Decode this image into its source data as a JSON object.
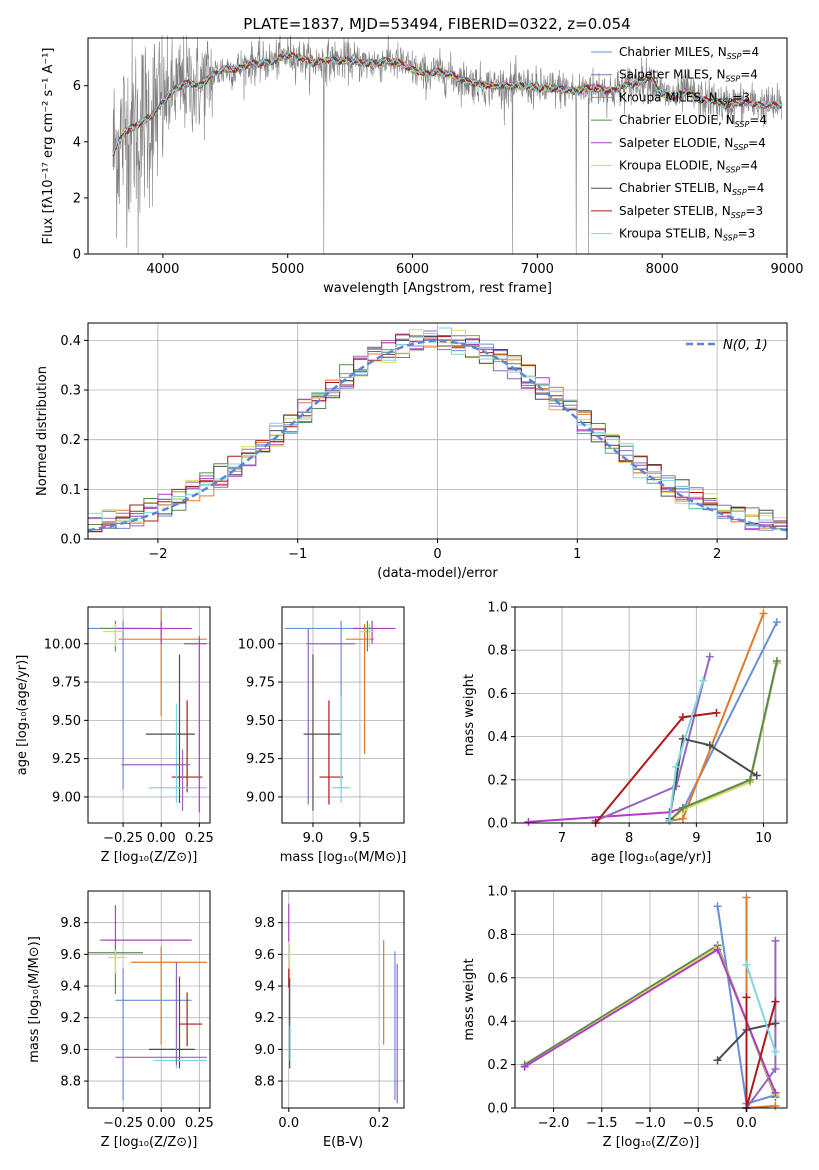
{
  "title": "PLATE=1837, MJD=53494, FIBERID=0322, z=0.054",
  "colors": {
    "Chabrier MILES": "#6a8fd8",
    "Salpeter MILES": "#9467bd",
    "Kroupa MILES": "#e07b2a",
    "Chabrier ELODIE": "#5c8a52",
    "Salpeter ELODIE": "#b13cc9",
    "Kroupa ELODIE": "#d7e05a",
    "Chabrier STELIB": "#4d4d4d",
    "Salpeter STELIB": "#b01818",
    "Kroupa STELIB": "#7fd6e0",
    "normal": "#5b86d8",
    "data": "#808080"
  },
  "chart_data": [
    {
      "id": "spectrum",
      "type": "line",
      "xlabel": "wavelength [Angstrom, rest frame]",
      "ylabel": "Flux [fλ10⁻¹⁷ erg cm⁻² s⁻¹ A⁻¹]",
      "xlim": [
        3400,
        9000
      ],
      "ylim": [
        0,
        7.7
      ],
      "xticks": [
        4000,
        5000,
        6000,
        7000,
        8000,
        9000
      ],
      "yticks": [
        0,
        2,
        4,
        6
      ],
      "legend": "upper right",
      "legend_entries": [
        {
          "label": "Chabrier MILES, N",
          "sub": "SSP",
          "suffix": "=4"
        },
        {
          "label": "Salpeter MILES, N",
          "sub": "SSP",
          "suffix": "=4"
        },
        {
          "label": "Kroupa MILES, N",
          "sub": "SSP",
          "suffix": "=3"
        },
        {
          "label": "Chabrier ELODIE, N",
          "sub": "SSP",
          "suffix": "=4"
        },
        {
          "label": "Salpeter ELODIE, N",
          "sub": "SSP",
          "suffix": "=4"
        },
        {
          "label": "Kroupa ELODIE, N",
          "sub": "SSP",
          "suffix": "=4"
        },
        {
          "label": "Chabrier STELIB, N",
          "sub": "SSP",
          "suffix": "=4"
        },
        {
          "label": "Salpeter STELIB, N",
          "sub": "SSP",
          "suffix": "=3"
        },
        {
          "label": "Kroupa STELIB, N",
          "sub": "SSP",
          "suffix": "=3"
        }
      ],
      "model_x": [
        3600,
        3700,
        3800,
        3900,
        4000,
        4100,
        4200,
        4300,
        4400,
        4500,
        4600,
        4700,
        4800,
        4900,
        5000,
        5100,
        5200,
        5300,
        5400,
        5500,
        5600,
        5700,
        5800,
        5900,
        6000,
        6100,
        6200,
        6300,
        6400,
        6500,
        6600,
        6700,
        6800,
        6900,
        7000,
        7100,
        7200,
        7300,
        7400,
        7500,
        7600,
        7700,
        7800,
        7900,
        8000,
        8100,
        8200,
        8300,
        8400,
        8500,
        8600,
        8700,
        8800,
        8900
      ],
      "model_y": [
        3.6,
        4.4,
        4.6,
        4.9,
        5.4,
        5.9,
        6.1,
        6.0,
        6.4,
        6.6,
        6.6,
        6.8,
        6.8,
        6.9,
        7.1,
        7.0,
        6.8,
        6.9,
        6.9,
        6.9,
        6.8,
        6.8,
        6.9,
        6.8,
        6.6,
        6.4,
        6.5,
        6.4,
        6.2,
        6.1,
        6.0,
        6.0,
        6.0,
        6.0,
        5.9,
        5.9,
        5.9,
        5.8,
        5.9,
        5.9,
        5.8,
        6.0,
        6.1,
        6.3,
        5.7,
        5.6,
        5.8,
        5.5,
        5.5,
        5.3,
        5.4,
        5.4,
        5.3,
        5.3
      ],
      "dropouts": [
        3800,
        5290,
        6800,
        7310,
        7410
      ]
    },
    {
      "id": "residuals",
      "type": "histogram",
      "xlabel": "(data-model)/error",
      "ylabel": "Normed distribution",
      "xlim": [
        -2.5,
        2.5
      ],
      "ylim": [
        0,
        0.435
      ],
      "xticks": [
        -2,
        -1,
        0,
        1,
        2
      ],
      "yticks": [
        0.0,
        0.1,
        0.2,
        0.3,
        0.4
      ],
      "grid": true,
      "legend": "upper right",
      "normal_label": "N(0, 1)",
      "bin_width": 0.1
    },
    {
      "id": "age_vs_Z",
      "type": "errorbar",
      "xlabel": "Z [log₁₀(Z/Z⊙)]",
      "ylabel": "age  [log₁₀(age/yr)]",
      "xlim": [
        -0.48,
        0.32
      ],
      "ylim": [
        8.83,
        10.24
      ],
      "xticks": [
        -0.25,
        0.0,
        0.25
      ],
      "xticklabels": [
        "−0.25",
        "0.00",
        "0.25"
      ],
      "yticks": [
        9.0,
        9.25,
        9.5,
        9.75,
        10.0
      ],
      "yticklabels": [
        "9.00",
        "9.25",
        "9.50",
        "9.75",
        "10.00"
      ],
      "points": [
        {
          "series": "Chabrier MILES",
          "x": -0.25,
          "xerr": [
            0.5,
            0.2
          ],
          "y": 10.1,
          "yerr": [
            1.05,
            0.05
          ]
        },
        {
          "series": "Kroupa MILES",
          "x": 0.0,
          "xerr": [
            0.28,
            0.3
          ],
          "y": 10.03,
          "yerr": [
            0.5,
            0.2
          ]
        },
        {
          "series": "Chabrier ELODIE",
          "x": -0.3,
          "xerr": [
            0.1,
            0.1
          ],
          "y": 10.1,
          "yerr": [
            0.15,
            0.05
          ]
        },
        {
          "series": "Kroupa ELODIE",
          "x": -0.3,
          "xerr": [
            0.08,
            0.05
          ],
          "y": 10.08,
          "yerr": [
            0.1,
            0.05
          ]
        },
        {
          "series": "Salpeter ELODIE",
          "x": 0.0,
          "xerr": [
            0.3,
            0.2
          ],
          "y": 10.1,
          "yerr": [
            0.1,
            0.05
          ]
        },
        {
          "series": "Chabrier STELIB",
          "x": 0.12,
          "xerr": [
            0.22,
            0.1
          ],
          "y": 9.41,
          "yerr": [
            0.45,
            0.52
          ]
        },
        {
          "series": "Salpeter STELIB",
          "x": 0.17,
          "xerr": [
            0.1,
            0.1
          ],
          "y": 9.13,
          "yerr": [
            0.1,
            0.5
          ]
        },
        {
          "series": "Kroupa STELIB",
          "x": 0.1,
          "xerr": [
            0.18,
            0.2
          ],
          "y": 9.06,
          "yerr": [
            0.1,
            0.55
          ]
        },
        {
          "series": "Salpeter MILES",
          "x": 0.14,
          "xerr": [
            0.4,
            0.05
          ],
          "y": 9.21,
          "yerr": [
            0.3,
            0.1
          ]
        },
        {
          "series": "Salpeter ELODIE",
          "x": 0.25,
          "xerr": [
            0.1,
            0.05
          ],
          "y": 10.0,
          "yerr": [
            1.1,
            0.05
          ]
        }
      ]
    },
    {
      "id": "age_vs_mass",
      "type": "errorbar",
      "xlabel": "mass [log₁₀(M/M⊙)]",
      "xlim": [
        8.67,
        9.97
      ],
      "ylim": [
        8.83,
        10.24
      ],
      "xticks": [
        9.0,
        9.5
      ],
      "xticklabels": [
        "9.0",
        "9.5"
      ],
      "yticks": [
        9.0,
        9.25,
        9.5,
        9.75,
        10.0
      ],
      "yticklabels": [
        "9.00",
        "9.25",
        "9.50",
        "9.75",
        "10.00"
      ],
      "points": [
        {
          "series": "Chabrier MILES",
          "x": 9.3,
          "xerr": [
            0.6,
            0.3
          ],
          "y": 10.1,
          "yerr": [
            1.05,
            0.05
          ]
        },
        {
          "series": "Kroupa MILES",
          "x": 9.55,
          "xerr": [
            0.2,
            0.1
          ],
          "y": 10.03,
          "yerr": [
            0.75,
            0.1
          ]
        },
        {
          "series": "Salpeter ELODIE",
          "x": 9.63,
          "xerr": [
            0.2,
            0.25
          ],
          "y": 10.1,
          "yerr": [
            0.1,
            0.05
          ]
        },
        {
          "series": "Kroupa ELODIE",
          "x": 9.6,
          "xerr": [
            0.1,
            0.05
          ],
          "y": 10.08,
          "yerr": [
            0.1,
            0.05
          ]
        },
        {
          "series": "Chabrier ELODIE",
          "x": 9.58,
          "xerr": [
            0.05,
            0.05
          ],
          "y": 10.1,
          "yerr": [
            0.15,
            0.05
          ]
        },
        {
          "series": "Salpeter MILES",
          "x": 8.95,
          "xerr": [
            0.02,
            0.5
          ],
          "y": 10.0,
          "yerr": [
            1.05,
            0.1
          ]
        },
        {
          "series": "Chabrier STELIB",
          "x": 9.0,
          "xerr": [
            0.1,
            0.3
          ],
          "y": 9.41,
          "yerr": [
            0.5,
            0.52
          ]
        },
        {
          "series": "Salpeter STELIB",
          "x": 9.17,
          "xerr": [
            0.1,
            0.15
          ],
          "y": 9.13,
          "yerr": [
            0.18,
            0.5
          ]
        },
        {
          "series": "Kroupa STELIB",
          "x": 9.3,
          "xerr": [
            0.1,
            0.1
          ],
          "y": 9.06,
          "yerr": [
            0.1,
            0.6
          ]
        }
      ]
    },
    {
      "id": "mw_vs_age",
      "type": "line",
      "xlabel": "age  [log₁₀(age/yr)]",
      "ylabel": "mass weight",
      "xlim": [
        6.3,
        10.35
      ],
      "ylim": [
        0,
        1.0
      ],
      "xticks": [
        7,
        8,
        9,
        10
      ],
      "yticks": [
        0.0,
        0.2,
        0.4,
        0.6,
        0.8,
        1.0
      ],
      "grid": true,
      "series": [
        {
          "name": "Chabrier MILES",
          "x": [
            8.6,
            8.8,
            10.2
          ],
          "y": [
            0.01,
            0.06,
            0.93
          ]
        },
        {
          "name": "Kroupa MILES",
          "x": [
            8.6,
            8.8,
            10.0
          ],
          "y": [
            0.01,
            0.02,
            0.97
          ]
        },
        {
          "name": "Salpeter ELODIE",
          "x": [
            6.5,
            8.6,
            8.8,
            9.8,
            10.2
          ],
          "y": [
            0.005,
            0.05,
            0.07,
            0.19,
            0.74
          ]
        },
        {
          "name": "Kroupa ELODIE",
          "x": [
            8.6,
            8.8,
            9.8,
            10.2
          ],
          "y": [
            0.01,
            0.06,
            0.19,
            0.74
          ]
        },
        {
          "name": "Chabrier ELODIE",
          "x": [
            8.6,
            8.8,
            9.8,
            10.2
          ],
          "y": [
            0.01,
            0.07,
            0.2,
            0.75
          ]
        },
        {
          "name": "Salpeter MILES",
          "x": [
            7.5,
            8.7,
            9.2
          ],
          "y": [
            0.01,
            0.17,
            0.77
          ]
        },
        {
          "name": "Chabrier STELIB",
          "x": [
            8.6,
            8.8,
            9.2,
            9.9
          ],
          "y": [
            0.02,
            0.39,
            0.36,
            0.22
          ]
        },
        {
          "name": "Salpeter STELIB",
          "x": [
            7.5,
            8.8,
            9.3
          ],
          "y": [
            0.0,
            0.49,
            0.51
          ]
        },
        {
          "name": "Kroupa STELIB",
          "x": [
            8.6,
            8.7,
            9.1
          ],
          "y": [
            0.01,
            0.26,
            0.66
          ]
        }
      ]
    },
    {
      "id": "mass_vs_Z",
      "type": "errorbar",
      "xlabel": "Z [log₁₀(Z/Z⊙)]",
      "ylabel": "mass [log₁₀(M/M⊙)]",
      "xlim": [
        -0.48,
        0.32
      ],
      "ylim": [
        8.63,
        10.0
      ],
      "xticks": [
        -0.25,
        0.0,
        0.25
      ],
      "xticklabels": [
        "−0.25",
        "0.00",
        "0.25"
      ],
      "yticks": [
        8.8,
        9.0,
        9.2,
        9.4,
        9.6,
        9.8
      ],
      "yticklabels": [
        "8.8",
        "9.0",
        "9.2",
        "9.4",
        "9.6",
        "9.8"
      ],
      "points": [
        {
          "series": "Salpeter ELODIE",
          "x": -0.3,
          "xerr": [
            0.1,
            0.5
          ],
          "y": 9.69,
          "yerr": [
            0.1,
            0.22
          ]
        },
        {
          "series": "Chabrier ELODIE",
          "x": -0.3,
          "xerr": [
            0.18,
            0.18
          ],
          "y": 9.61,
          "yerr": [
            0.26,
            0.05
          ]
        },
        {
          "series": "Kroupa ELODIE",
          "x": -0.3,
          "xerr": [
            0.05,
            0.07
          ],
          "y": 9.58,
          "yerr": [
            0.1,
            0.05
          ]
        },
        {
          "series": "Kroupa MILES",
          "x": 0.0,
          "xerr": [
            0.2,
            0.3
          ],
          "y": 9.55,
          "yerr": [
            0.52,
            0.1
          ]
        },
        {
          "series": "Chabrier MILES",
          "x": -0.25,
          "xerr": [
            0.05,
            0.45
          ],
          "y": 9.31,
          "yerr": [
            0.63,
            0.2
          ]
        },
        {
          "series": "Chabrier STELIB",
          "x": 0.12,
          "xerr": [
            0.2,
            0.1
          ],
          "y": 9.0,
          "yerr": [
            0.12,
            0.46
          ]
        },
        {
          "series": "Salpeter STELIB",
          "x": 0.17,
          "xerr": [
            0.05,
            0.1
          ],
          "y": 9.16,
          "yerr": [
            0.14,
            0.2
          ]
        },
        {
          "series": "Kroupa STELIB",
          "x": 0.1,
          "xerr": [
            0.15,
            0.2
          ],
          "y": 8.93,
          "yerr": [
            0.05,
            0.53
          ]
        },
        {
          "series": "Salpeter MILES",
          "x": 0.1,
          "xerr": [
            0.4,
            0.2
          ],
          "y": 8.95,
          "yerr": [
            0.05,
            0.6
          ]
        }
      ]
    },
    {
      "id": "mass_vs_ebv",
      "type": "errorbar",
      "xlabel": "E(B-V)",
      "xlim": [
        -0.015,
        0.255
      ],
      "ylim": [
        8.63,
        10.0
      ],
      "xticks": [
        0.0,
        0.2
      ],
      "xticklabels": [
        "0.0",
        "0.2"
      ],
      "yticks": [
        8.8,
        9.0,
        9.2,
        9.4,
        9.6,
        9.8
      ],
      "yticklabels": [
        "8.8",
        "9.0",
        "9.2",
        "9.4",
        "9.6",
        "9.8"
      ],
      "points": [
        {
          "series": "Salpeter ELODIE",
          "x": 0.0,
          "xerr": [
            0,
            0
          ],
          "y": 9.8,
          "yerr": [
            0.12,
            0.12
          ]
        },
        {
          "series": "Kroupa ELODIE",
          "x": 0.002,
          "xerr": [
            0,
            0
          ],
          "y": 9.55,
          "yerr": [
            0.1,
            0.12
          ]
        },
        {
          "series": "Salpeter STELIB",
          "x": 0.0,
          "xerr": [
            0,
            0
          ],
          "y": 9.45,
          "yerr": [
            0.06,
            0.06
          ]
        },
        {
          "series": "Chabrier STELIB",
          "x": 0.002,
          "xerr": [
            0,
            0
          ],
          "y": 9.2,
          "yerr": [
            0.32,
            0.25
          ]
        },
        {
          "series": "Kroupa STELIB",
          "x": 0.003,
          "xerr": [
            0,
            0
          ],
          "y": 9.05,
          "yerr": [
            0.12,
            0.1
          ]
        },
        {
          "series": "Kroupa MILES",
          "x": 0.21,
          "xerr": [
            0,
            0
          ],
          "y": 9.36,
          "yerr": [
            0.33,
            0.33
          ]
        },
        {
          "series": "Chabrier MILES",
          "x": 0.235,
          "xerr": [
            0,
            0
          ],
          "y": 9.15,
          "yerr": [
            0.47,
            0.47
          ]
        },
        {
          "series": "Salpeter MILES",
          "x": 0.24,
          "xerr": [
            0,
            0
          ],
          "y": 9.1,
          "yerr": [
            0.44,
            0.44
          ]
        }
      ]
    },
    {
      "id": "mw_vs_Z",
      "type": "line",
      "xlabel": "Z [log₁₀(Z/Z⊙)]",
      "ylabel": "mass weight",
      "xlim": [
        -2.4,
        0.42
      ],
      "ylim": [
        0,
        1.0
      ],
      "xticks": [
        -2.0,
        -1.5,
        -1.0,
        -0.5,
        0.0
      ],
      "xticklabels": [
        "−2.0",
        "−1.5",
        "−1.0",
        "−0.5",
        "0.0"
      ],
      "yticks": [
        0.0,
        0.2,
        0.4,
        0.6,
        0.8,
        1.0
      ],
      "grid": true,
      "series": [
        {
          "name": "Chabrier MILES",
          "x": [
            -0.3,
            0.0,
            0.3
          ],
          "y": [
            0.93,
            0.02,
            0.06
          ]
        },
        {
          "name": "Kroupa MILES",
          "x": [
            0.0,
            0.0,
            0.3
          ],
          "y": [
            0.97,
            0.0,
            0.01
          ]
        },
        {
          "name": "Chabrier ELODIE",
          "x": [
            -2.3,
            -0.3,
            0.3
          ],
          "y": [
            0.2,
            0.75,
            0.05
          ]
        },
        {
          "name": "Kroupa ELODIE",
          "x": [
            -2.3,
            -0.3,
            0.3
          ],
          "y": [
            0.19,
            0.74,
            0.06
          ]
        },
        {
          "name": "Salpeter ELODIE",
          "x": [
            -2.3,
            -0.3,
            0.3
          ],
          "y": [
            0.19,
            0.73,
            0.07
          ]
        },
        {
          "name": "Salpeter MILES",
          "x": [
            0.0,
            0.3,
            0.3
          ],
          "y": [
            0.0,
            0.18,
            0.77
          ]
        },
        {
          "name": "Chabrier STELIB",
          "x": [
            -0.3,
            0.0,
            0.3
          ],
          "y": [
            0.22,
            0.36,
            0.39
          ]
        },
        {
          "name": "Salpeter STELIB",
          "x": [
            0.0,
            0.0,
            0.3
          ],
          "y": [
            0.51,
            0.0,
            0.49
          ]
        },
        {
          "name": "Kroupa STELIB",
          "x": [
            0.0,
            0.3
          ],
          "y": [
            0.66,
            0.26
          ]
        }
      ]
    }
  ]
}
